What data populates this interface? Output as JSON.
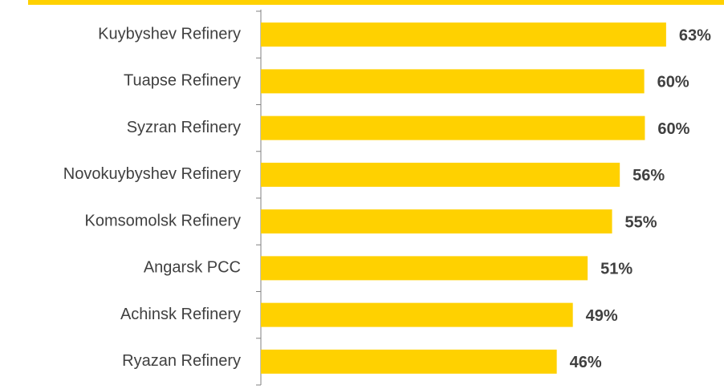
{
  "chart_data": {
    "type": "bar",
    "orientation": "horizontal",
    "categories": [
      "Kuybyshev Refinery",
      "Tuapse Refinery",
      "Syzran Refinery",
      "Novokuybyshev Refinery",
      "Komsomolsk Refinery",
      "Angarsk PCC",
      "Achinsk Refinery",
      "Ryazan Refinery"
    ],
    "values": [
      63,
      59.6,
      59.7,
      55.8,
      54.6,
      50.8,
      48.5,
      46.0
    ],
    "value_labels": [
      "63%",
      "60%",
      "60%",
      "56%",
      "55%",
      "51%",
      "49%",
      "46%"
    ],
    "color": "#ffd100",
    "xlim": [
      0,
      72
    ]
  }
}
